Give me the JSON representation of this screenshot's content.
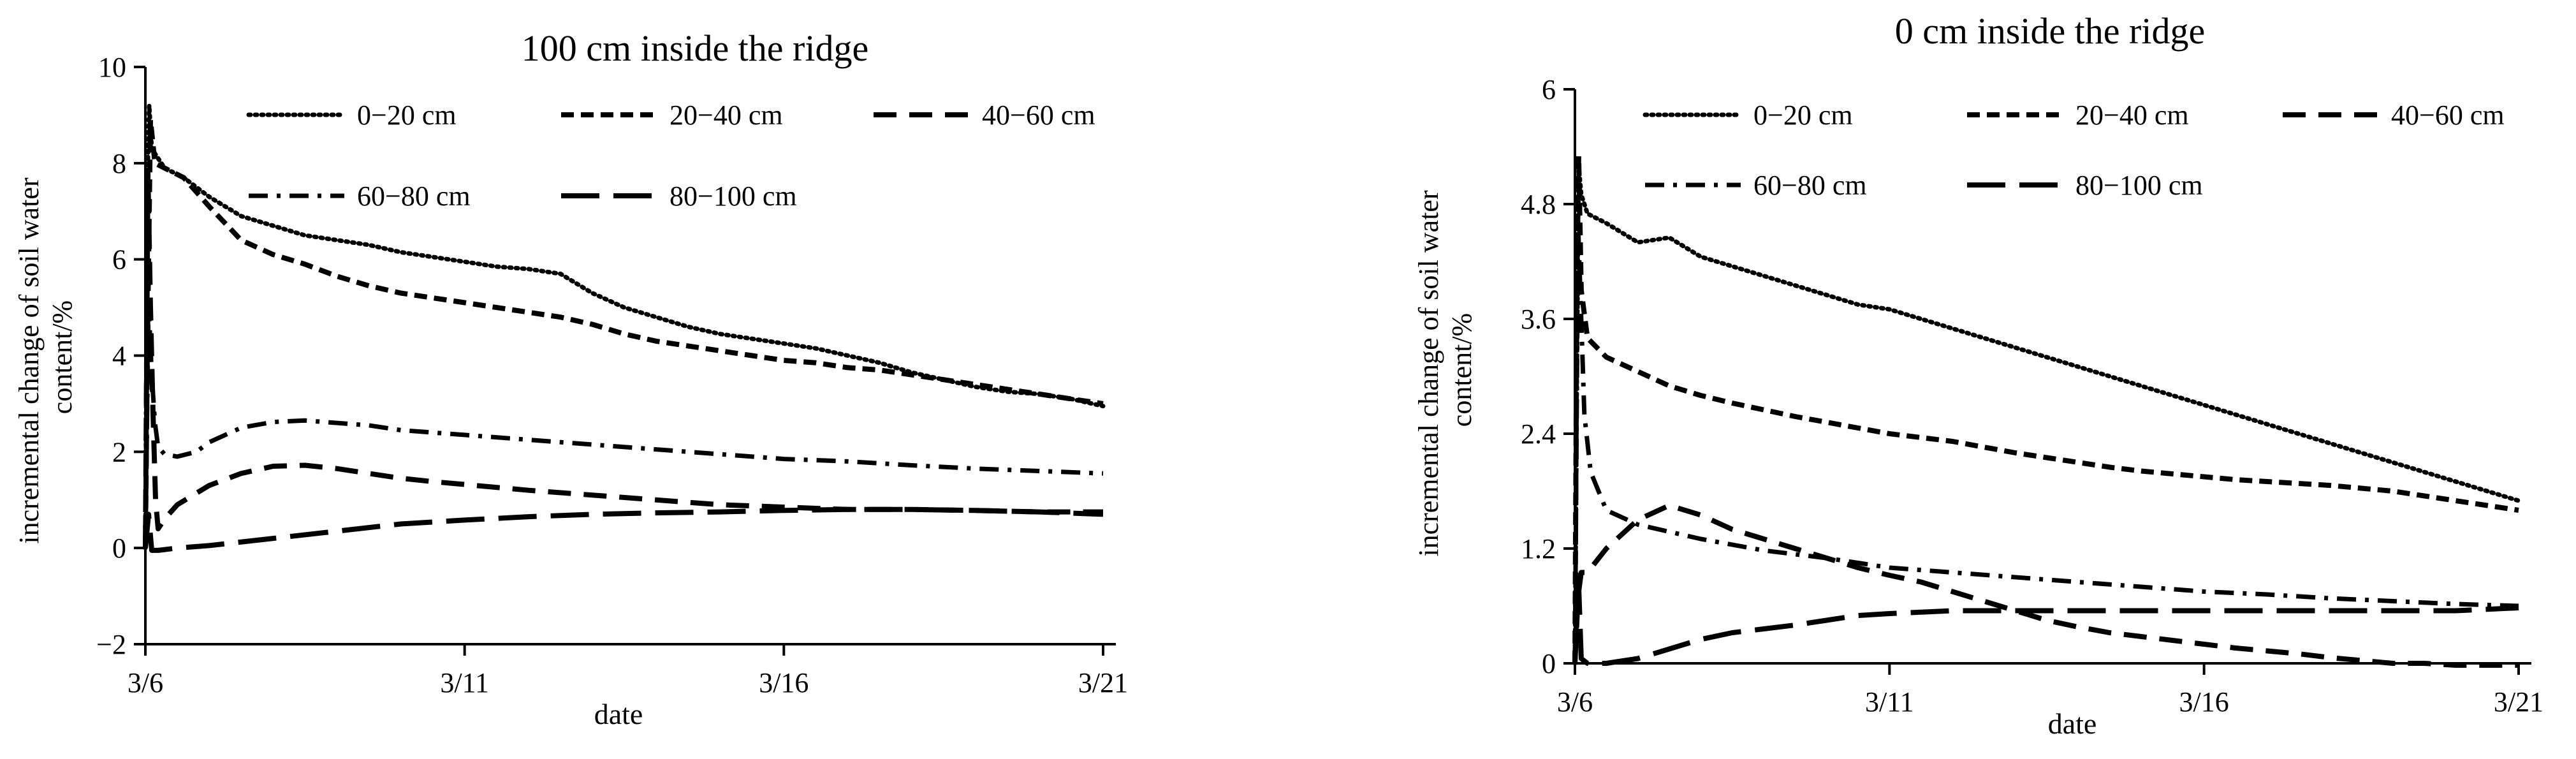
{
  "chart_data": [
    {
      "type": "line",
      "title": "100 cm inside the ridge",
      "xlabel": "date",
      "ylabel_lines": [
        "incremental change of soil water",
        "content/%"
      ],
      "xlim": [
        0,
        15
      ],
      "ylim": [
        -2,
        10
      ],
      "yticks": [
        -2,
        0,
        2,
        4,
        6,
        8,
        10
      ],
      "ytick_labels": [
        "−2",
        "0",
        "2",
        "4",
        "6",
        "8",
        "10"
      ],
      "xticks": [
        0,
        5,
        10,
        15
      ],
      "xtick_labels": [
        "3/6",
        "3/11",
        "3/16",
        "3/21"
      ],
      "legend_rows": [
        [
          0,
          1,
          2
        ],
        [
          3,
          4
        ]
      ],
      "series": [
        {
          "name": "0−20 cm",
          "style": "dotted",
          "x": [
            0,
            0.03,
            0.06,
            0.1,
            0.3,
            0.6,
            1,
            1.5,
            2,
            2.5,
            3,
            3.5,
            4,
            4.5,
            5,
            5.5,
            6,
            6.5,
            7,
            7.5,
            8,
            8.5,
            9,
            9.5,
            10,
            10.5,
            11,
            11.5,
            12,
            12.5,
            13,
            13.5,
            14,
            14.5,
            15
          ],
          "y": [
            0,
            7.5,
            9.2,
            8.3,
            7.9,
            7.7,
            7.3,
            6.9,
            6.7,
            6.5,
            6.4,
            6.3,
            6.15,
            6.05,
            5.95,
            5.85,
            5.8,
            5.7,
            5.3,
            5.0,
            4.8,
            4.6,
            4.45,
            4.35,
            4.25,
            4.15,
            4.0,
            3.85,
            3.65,
            3.5,
            3.35,
            3.25,
            3.2,
            3.1,
            2.95
          ]
        },
        {
          "name": "20−40 cm",
          "style": "short-dash",
          "x": [
            0,
            0.03,
            0.08,
            0.15,
            0.3,
            0.6,
            1,
            1.5,
            2,
            2.5,
            3,
            3.5,
            4,
            4.5,
            5,
            5.5,
            6,
            6.5,
            7,
            7.5,
            8,
            8.5,
            9,
            9.5,
            10,
            10.5,
            11,
            11.5,
            12,
            12.5,
            13,
            13.5,
            14,
            14.5,
            15
          ],
          "y": [
            0,
            4.0,
            8.9,
            8.0,
            7.9,
            7.7,
            7.1,
            6.4,
            6.1,
            5.9,
            5.65,
            5.45,
            5.3,
            5.2,
            5.1,
            5.0,
            4.9,
            4.8,
            4.65,
            4.45,
            4.3,
            4.2,
            4.1,
            4.0,
            3.9,
            3.85,
            3.75,
            3.7,
            3.6,
            3.5,
            3.4,
            3.3,
            3.2,
            3.1,
            3.0
          ]
        },
        {
          "name": "40−60 cm",
          "style": "long-dash",
          "x": [
            0,
            0.04,
            0.08,
            0.12,
            0.16,
            0.2,
            0.3,
            0.5,
            1,
            1.5,
            2,
            2.5,
            3,
            3.5,
            4,
            4.5,
            5,
            6,
            7,
            8,
            9,
            10,
            11,
            12,
            13,
            14,
            15
          ],
          "y": [
            0,
            7.8,
            5.0,
            2.8,
            1.0,
            0.4,
            0.6,
            0.9,
            1.3,
            1.55,
            1.7,
            1.72,
            1.65,
            1.55,
            1.45,
            1.38,
            1.32,
            1.2,
            1.1,
            1.0,
            0.9,
            0.85,
            0.8,
            0.8,
            0.78,
            0.75,
            0.75
          ]
        },
        {
          "name": "60−80 cm",
          "style": "dash-dot",
          "x": [
            0,
            0.05,
            0.1,
            0.15,
            0.2,
            0.3,
            0.5,
            0.8,
            1,
            1.5,
            2,
            2.5,
            3,
            3.5,
            4,
            5,
            6,
            7,
            8,
            9,
            10,
            11,
            12,
            13,
            14,
            15
          ],
          "y": [
            0,
            5.1,
            3.6,
            2.6,
            2.1,
            1.95,
            1.9,
            2.0,
            2.2,
            2.5,
            2.62,
            2.65,
            2.6,
            2.55,
            2.45,
            2.35,
            2.25,
            2.15,
            2.05,
            1.95,
            1.85,
            1.8,
            1.72,
            1.65,
            1.6,
            1.55
          ]
        },
        {
          "name": "80−100 cm",
          "style": "longer-dash",
          "x": [
            0,
            0.05,
            0.1,
            0.2,
            0.5,
            1,
            2,
            3,
            4,
            5,
            6,
            7,
            8,
            9,
            10,
            11,
            12,
            13,
            14,
            15
          ],
          "y": [
            0,
            0.7,
            -0.05,
            -0.05,
            0.0,
            0.05,
            0.2,
            0.35,
            0.5,
            0.58,
            0.65,
            0.7,
            0.73,
            0.75,
            0.78,
            0.8,
            0.8,
            0.78,
            0.75,
            0.7
          ]
        }
      ]
    },
    {
      "type": "line",
      "title": "0 cm inside the ridge",
      "xlabel": "date",
      "ylabel_lines": [
        "incremental change of soil water",
        "content/%"
      ],
      "xlim": [
        0,
        15
      ],
      "ylim": [
        0,
        6
      ],
      "yticks": [
        0,
        1.2,
        2.4,
        3.6,
        4.8,
        6
      ],
      "ytick_labels": [
        "0",
        "1.2",
        "2.4",
        "3.6",
        "4.8",
        "6"
      ],
      "xticks": [
        0,
        5,
        10,
        15
      ],
      "xtick_labels": [
        "3/6",
        "3/11",
        "3/16",
        "3/21"
      ],
      "legend_rows": [
        [
          0,
          1,
          2
        ],
        [
          3,
          4
        ]
      ],
      "series": [
        {
          "name": "0−20 cm",
          "style": "dotted",
          "x": [
            0,
            0.03,
            0.06,
            0.1,
            0.2,
            0.5,
            1,
            1.5,
            2,
            2.5,
            3,
            3.5,
            4,
            4.5,
            5,
            5.5,
            6,
            6.5,
            7,
            7.5,
            8,
            8.5,
            9,
            9.5,
            10,
            10.5,
            11,
            11.5,
            12,
            12.5,
            13,
            13.5,
            14,
            14.5,
            15
          ],
          "y": [
            0,
            3.0,
            5.2,
            4.9,
            4.7,
            4.6,
            4.4,
            4.45,
            4.25,
            4.15,
            4.05,
            3.95,
            3.85,
            3.75,
            3.7,
            3.6,
            3.5,
            3.4,
            3.3,
            3.2,
            3.1,
            3.0,
            2.9,
            2.8,
            2.7,
            2.6,
            2.5,
            2.4,
            2.3,
            2.2,
            2.1,
            2.0,
            1.9,
            1.8,
            1.7
          ]
        },
        {
          "name": "20−40 cm",
          "style": "short-dash",
          "x": [
            0,
            0.03,
            0.06,
            0.1,
            0.2,
            0.5,
            1,
            1.5,
            2,
            2.5,
            3,
            3.5,
            4,
            4.5,
            5,
            5.5,
            6,
            6.5,
            7,
            7.5,
            8,
            8.5,
            9,
            9.5,
            10,
            10.5,
            11,
            11.5,
            12,
            12.5,
            13,
            13.5,
            14,
            14.5,
            15
          ],
          "y": [
            0,
            4.0,
            5.3,
            3.9,
            3.4,
            3.2,
            3.05,
            2.9,
            2.8,
            2.72,
            2.65,
            2.58,
            2.52,
            2.46,
            2.4,
            2.36,
            2.32,
            2.26,
            2.2,
            2.15,
            2.1,
            2.05,
            2.01,
            1.98,
            1.95,
            1.92,
            1.9,
            1.88,
            1.86,
            1.83,
            1.8,
            1.75,
            1.7,
            1.65,
            1.6
          ]
        },
        {
          "name": "40−60 cm",
          "style": "long-dash",
          "x": [
            0,
            0.05,
            0.1,
            0.2,
            0.5,
            1,
            1.5,
            2,
            2.5,
            3,
            3.5,
            4,
            4.5,
            5,
            5.5,
            6,
            6.5,
            7,
            7.5,
            8,
            8.5,
            9,
            9.5,
            10,
            10.5,
            11,
            11.5,
            12,
            12.5,
            13,
            13.5,
            14,
            15
          ],
          "y": [
            0,
            0.7,
            0.95,
            0.95,
            1.2,
            1.5,
            1.65,
            1.55,
            1.4,
            1.3,
            1.2,
            1.1,
            1.0,
            0.92,
            0.85,
            0.75,
            0.65,
            0.55,
            0.45,
            0.38,
            0.32,
            0.28,
            0.24,
            0.2,
            0.16,
            0.13,
            0.1,
            0.06,
            0.03,
            0.0,
            0.0,
            -0.02,
            -0.02
          ]
        },
        {
          "name": "60−80 cm",
          "style": "dash-dot",
          "x": [
            0,
            0.05,
            0.1,
            0.15,
            0.25,
            0.5,
            1,
            2,
            3,
            4,
            5,
            6,
            7,
            8,
            9,
            10,
            11,
            12,
            13,
            14,
            15
          ],
          "y": [
            0,
            4.6,
            3.6,
            2.6,
            2.0,
            1.6,
            1.45,
            1.3,
            1.18,
            1.1,
            1.0,
            0.95,
            0.9,
            0.85,
            0.8,
            0.75,
            0.72,
            0.68,
            0.65,
            0.62,
            0.6
          ]
        },
        {
          "name": "80−100 cm",
          "style": "longer-dash",
          "x": [
            0,
            0.05,
            0.1,
            0.2,
            0.5,
            1,
            1.5,
            2,
            2.5,
            3,
            3.5,
            4,
            4.5,
            5,
            6,
            7,
            8,
            9,
            10,
            11,
            12,
            13,
            14,
            15
          ],
          "y": [
            0,
            1.0,
            0.05,
            0.0,
            0.0,
            0.05,
            0.15,
            0.25,
            0.32,
            0.36,
            0.4,
            0.45,
            0.5,
            0.52,
            0.55,
            0.55,
            0.55,
            0.55,
            0.55,
            0.55,
            0.55,
            0.55,
            0.55,
            0.58
          ]
        }
      ]
    }
  ]
}
